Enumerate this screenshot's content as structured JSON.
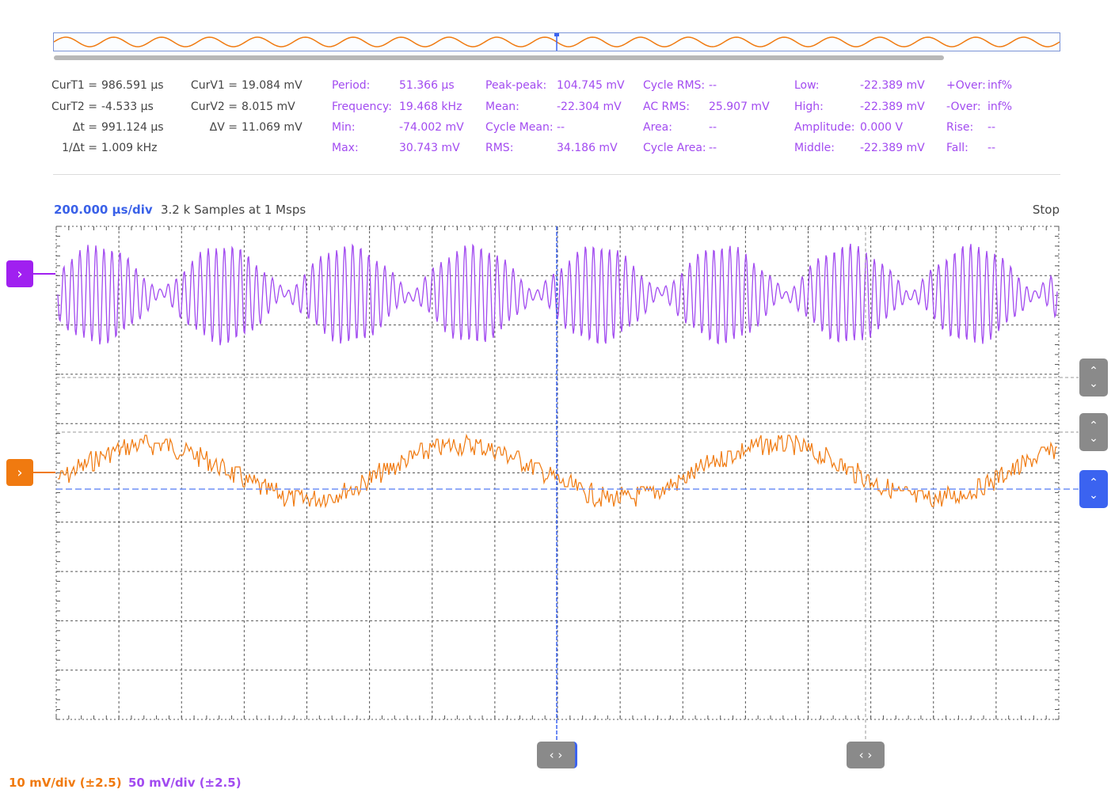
{
  "cursor_readout": [
    {
      "label": "CurT1 =",
      "value": "986.591 µs"
    },
    {
      "label": "CurT2 =",
      "value": "-4.533 µs"
    },
    {
      "label": "Δt =",
      "value": "991.124 µs"
    },
    {
      "label": "1/Δt =",
      "value": "1.009 kHz"
    }
  ],
  "voltage_readout": [
    {
      "label": "CurV1 =",
      "value": "19.084 mV"
    },
    {
      "label": "CurV2 =",
      "value": "8.015 mV"
    },
    {
      "label": "ΔV =",
      "value": "11.069 mV"
    }
  ],
  "measurements": {
    "col1": [
      {
        "label": "Period:",
        "value": "51.366 µs"
      },
      {
        "label": "Frequency:",
        "value": "19.468 kHz"
      },
      {
        "label": "Min:",
        "value": "-74.002 mV"
      },
      {
        "label": "Max:",
        "value": "30.743 mV"
      }
    ],
    "col2": [
      {
        "label": "Peak-peak:",
        "value": "104.745 mV"
      },
      {
        "label": "Mean:",
        "value": "-22.304 mV"
      },
      {
        "label": "Cycle Mean:",
        "value": "--"
      },
      {
        "label": "RMS:",
        "value": "34.186 mV"
      }
    ],
    "col3": [
      {
        "label": "Cycle RMS:",
        "value": "--"
      },
      {
        "label": "AC RMS:",
        "value": "25.907 mV"
      },
      {
        "label": "Area:",
        "value": "--"
      },
      {
        "label": "Cycle Area:",
        "value": "--"
      }
    ],
    "col4": [
      {
        "label": "Low:",
        "value": "-22.389 mV"
      },
      {
        "label": "High:",
        "value": "-22.389 mV"
      },
      {
        "label": "Amplitude:",
        "value": "0.000 V"
      },
      {
        "label": "Middle:",
        "value": "-22.389 mV"
      }
    ],
    "col5": [
      {
        "label": "+Over:",
        "value": "inf%"
      },
      {
        "label": "-Over:",
        "value": "inf%"
      },
      {
        "label": "Rise:",
        "value": "--"
      },
      {
        "label": "Fall:",
        "value": "--"
      }
    ]
  },
  "scope": {
    "time_div": "200.000 µs/div",
    "samples": "3.2 k Samples at 1 Msps",
    "run_state": "Stop"
  },
  "channels": {
    "orange": {
      "scale": "10 mV/div (±2.5)",
      "color": "#f07a10"
    },
    "purple": {
      "scale": "50 mV/div (±2.5)",
      "color": "#a24bf0"
    }
  },
  "icons": {
    "channel_marker": "chevron-right-icon",
    "offset_control": "chevron-up-down-icon",
    "cursor_handle": "chevron-left-right-icon"
  },
  "colors": {
    "accent_blue": "#3b63f0",
    "grid": "#555555",
    "control_gray": "#8a8a8a"
  }
}
